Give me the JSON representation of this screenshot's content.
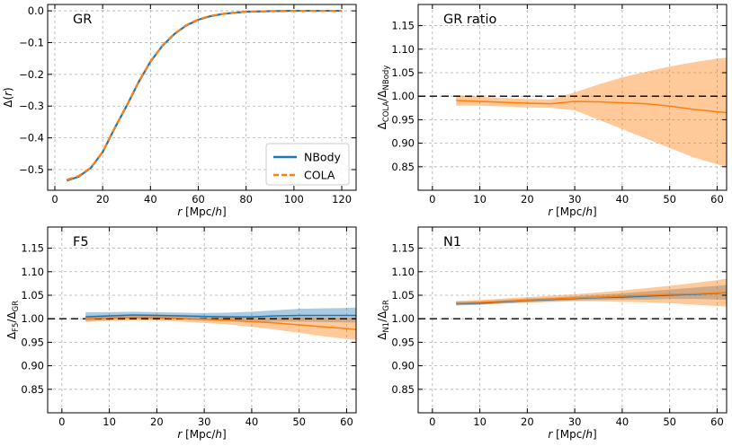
{
  "chart_data": [
    {
      "type": "line",
      "title": "GR",
      "xlabel": "r [Mpc/h]",
      "ylabel": "Δ(r)",
      "xlim": [
        -3,
        126
      ],
      "ylim": [
        -0.565,
        0.02
      ],
      "xticks": [
        0,
        20,
        40,
        60,
        80,
        100,
        120
      ],
      "yticks": [
        0.0,
        -0.1,
        -0.2,
        -0.3,
        -0.4,
        -0.5
      ],
      "ytick_labels": [
        "0.0",
        "−0.1",
        "−0.2",
        "−0.3",
        "−0.4",
        "−0.5"
      ],
      "grid": true,
      "legend": "lower-right",
      "series": [
        {
          "name": "NBody",
          "color": "#1f77b4",
          "style": "solid",
          "x": [
            5,
            10,
            15,
            20,
            25,
            30,
            35,
            40,
            45,
            50,
            55,
            60,
            65,
            70,
            75,
            80,
            85,
            90,
            95,
            100,
            105,
            110,
            115,
            120
          ],
          "y": [
            -0.535,
            -0.522,
            -0.495,
            -0.445,
            -0.37,
            -0.3,
            -0.225,
            -0.16,
            -0.11,
            -0.073,
            -0.046,
            -0.028,
            -0.017,
            -0.01,
            -0.006,
            -0.003,
            -0.002,
            -0.001,
            -0.0005,
            0,
            0,
            0,
            0,
            0
          ]
        },
        {
          "name": "COLA",
          "color": "#ff7f0e",
          "style": "dashed",
          "x": [
            5,
            10,
            15,
            20,
            25,
            30,
            35,
            40,
            45,
            50,
            55,
            60,
            65,
            70,
            75,
            80,
            85,
            90,
            95,
            100,
            105,
            110,
            115,
            120
          ],
          "y": [
            -0.532,
            -0.52,
            -0.494,
            -0.444,
            -0.369,
            -0.299,
            -0.224,
            -0.159,
            -0.109,
            -0.072,
            -0.045,
            -0.027,
            -0.016,
            -0.01,
            -0.006,
            -0.003,
            -0.002,
            -0.001,
            -0.0005,
            0,
            0,
            0,
            0,
            0
          ]
        }
      ]
    },
    {
      "type": "line",
      "title": "GR ratio",
      "xlabel": "r [Mpc/h]",
      "ylabel": "Δ_COLA/Δ_NBody",
      "xlim": [
        -3,
        62
      ],
      "ylim": [
        0.8,
        1.195
      ],
      "xticks": [
        0,
        10,
        20,
        30,
        40,
        50,
        60
      ],
      "yticks": [
        0.85,
        0.9,
        0.95,
        1.0,
        1.05,
        1.1,
        1.15
      ],
      "ytick_labels": [
        "0.85",
        "0.90",
        "0.95",
        "1.00",
        "1.05",
        "1.10",
        "1.15"
      ],
      "grid": true,
      "reference_line": 1.0,
      "series": [
        {
          "color": "#ff7f0e",
          "x": [
            5,
            10,
            15,
            20,
            25,
            30,
            35,
            40,
            45,
            50,
            55,
            60,
            62
          ],
          "y": [
            0.991,
            0.989,
            0.987,
            0.985,
            0.984,
            0.989,
            0.988,
            0.986,
            0.984,
            0.979,
            0.972,
            0.967,
            0.965
          ],
          "y_low": [
            0.98,
            0.98,
            0.978,
            0.976,
            0.975,
            0.97,
            0.95,
            0.93,
            0.91,
            0.89,
            0.87,
            0.855,
            0.85
          ],
          "y_high": [
            1.002,
            0.999,
            0.996,
            0.994,
            0.993,
            1.008,
            1.025,
            1.04,
            1.052,
            1.063,
            1.072,
            1.08,
            1.082
          ]
        }
      ]
    },
    {
      "type": "line",
      "title": "F5",
      "xlabel": "r [Mpc/h]",
      "ylabel": "Δ_F5/Δ_GR",
      "xlim": [
        -3,
        62
      ],
      "ylim": [
        0.8,
        1.195
      ],
      "xticks": [
        0,
        10,
        20,
        30,
        40,
        50,
        60
      ],
      "yticks": [
        0.85,
        0.9,
        0.95,
        1.0,
        1.05,
        1.1,
        1.15
      ],
      "ytick_labels": [
        "0.85",
        "0.90",
        "0.95",
        "1.00",
        "1.05",
        "1.10",
        "1.15"
      ],
      "grid": true,
      "reference_line": 1.0,
      "series": [
        {
          "name": "NBody",
          "color": "#1f77b4",
          "x": [
            5,
            10,
            15,
            20,
            25,
            30,
            35,
            40,
            45,
            50,
            55,
            60,
            62
          ],
          "y": [
            1.004,
            1.006,
            1.008,
            1.007,
            1.006,
            1.005,
            1.004,
            1.004,
            1.006,
            1.007,
            1.007,
            1.007,
            1.007
          ],
          "y_low": [
            0.995,
            0.998,
            1.0,
            0.999,
            0.998,
            0.996,
            0.994,
            0.993,
            0.994,
            0.994,
            0.993,
            0.992,
            0.992
          ],
          "y_high": [
            1.014,
            1.014,
            1.015,
            1.014,
            1.013,
            1.012,
            1.013,
            1.015,
            1.018,
            1.021,
            1.022,
            1.023,
            1.024
          ]
        },
        {
          "name": "COLA",
          "color": "#ff7f0e",
          "x": [
            5,
            10,
            15,
            20,
            25,
            30,
            35,
            40,
            45,
            50,
            55,
            60,
            62
          ],
          "y": [
            1.0,
            1.002,
            1.003,
            1.003,
            1.001,
            0.999,
            0.997,
            0.994,
            0.991,
            0.987,
            0.983,
            0.979,
            0.977
          ],
          "y_low": [
            0.993,
            0.995,
            0.996,
            0.996,
            0.994,
            0.991,
            0.988,
            0.983,
            0.977,
            0.97,
            0.963,
            0.957,
            0.955
          ],
          "y_high": [
            1.007,
            1.008,
            1.009,
            1.009,
            1.008,
            1.007,
            1.006,
            1.005,
            1.004,
            1.004,
            1.003,
            1.002,
            1.002
          ]
        }
      ]
    },
    {
      "type": "line",
      "title": "N1",
      "xlabel": "r [Mpc/h]",
      "ylabel": "Δ_N1/Δ_GR",
      "xlim": [
        -3,
        62
      ],
      "ylim": [
        0.8,
        1.195
      ],
      "xticks": [
        0,
        10,
        20,
        30,
        40,
        50,
        60
      ],
      "yticks": [
        0.85,
        0.9,
        0.95,
        1.0,
        1.05,
        1.1,
        1.15
      ],
      "ytick_labels": [
        "0.85",
        "0.90",
        "0.95",
        "1.00",
        "1.05",
        "1.10",
        "1.15"
      ],
      "grid": true,
      "reference_line": 1.0,
      "series": [
        {
          "name": "NBody",
          "color": "#1f77b4",
          "x": [
            5,
            10,
            15,
            20,
            25,
            30,
            35,
            40,
            45,
            50,
            55,
            60,
            62
          ],
          "y": [
            1.032,
            1.033,
            1.036,
            1.039,
            1.041,
            1.043,
            1.045,
            1.046,
            1.048,
            1.05,
            1.052,
            1.054,
            1.056
          ],
          "y_low": [
            1.028,
            1.03,
            1.033,
            1.035,
            1.037,
            1.039,
            1.04,
            1.041,
            1.041,
            1.042,
            1.042,
            1.041,
            1.04
          ],
          "y_high": [
            1.036,
            1.037,
            1.04,
            1.043,
            1.045,
            1.048,
            1.051,
            1.054,
            1.058,
            1.062,
            1.066,
            1.07,
            1.072
          ]
        },
        {
          "name": "COLA",
          "color": "#ff7f0e",
          "x": [
            5,
            10,
            15,
            20,
            25,
            30,
            35,
            40,
            45,
            50,
            55,
            60,
            62
          ],
          "y": [
            1.033,
            1.035,
            1.037,
            1.04,
            1.042,
            1.044,
            1.046,
            1.048,
            1.05,
            1.052,
            1.053,
            1.055,
            1.056
          ],
          "y_low": [
            1.029,
            1.03,
            1.032,
            1.034,
            1.036,
            1.037,
            1.037,
            1.036,
            1.035,
            1.033,
            1.03,
            1.027,
            1.026
          ],
          "y_high": [
            1.038,
            1.04,
            1.043,
            1.046,
            1.049,
            1.052,
            1.056,
            1.06,
            1.065,
            1.07,
            1.076,
            1.082,
            1.085
          ]
        }
      ]
    }
  ]
}
